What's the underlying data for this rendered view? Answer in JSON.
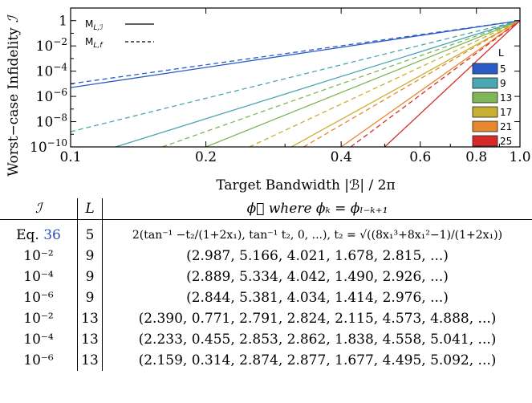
{
  "chart_data": {
    "type": "line",
    "xlabel": "Target Bandwidth |ℬ| / 2π",
    "ylabel": "Worst−case Infidelity",
    "ylabel_symbol": "ℐ",
    "x_scale": "log",
    "y_scale": "log",
    "xlim": [
      0.1,
      1.0
    ],
    "ylim": [
      1e-10,
      10
    ],
    "x_ticks": [
      {
        "value": 0.1,
        "label": "0.1"
      },
      {
        "value": 0.2,
        "label": "0.2"
      },
      {
        "value": 0.4,
        "label": "0.4"
      },
      {
        "value": 0.6,
        "label": "0.6"
      },
      {
        "value": 0.8,
        "label": "0.8"
      },
      {
        "value": 1.0,
        "label": "1.0"
      }
    ],
    "y_ticks": [
      {
        "value": 1,
        "base": "1",
        "exp": ""
      },
      {
        "value": 0.01,
        "base": "10",
        "exp": "−2"
      },
      {
        "value": 0.0001,
        "base": "10",
        "exp": "−4"
      },
      {
        "value": 1e-06,
        "base": "10",
        "exp": "−6"
      },
      {
        "value": 1e-08,
        "base": "10",
        "exp": "−8"
      },
      {
        "value": 1e-10,
        "base": "10",
        "exp": "−10"
      }
    ],
    "style_legend": [
      {
        "label": "M",
        "sub": "L,ℐ",
        "style": "solid"
      },
      {
        "label": "M",
        "sub": "L,f",
        "style": "dashed"
      }
    ],
    "L_legend_title": "L",
    "series": [
      {
        "name": "5",
        "color": "#2b5bc4",
        "solid": {
          "x": [
            0.1,
            1.0
          ],
          "y": [
            5e-06,
            1
          ]
        },
        "dashed": {
          "x": [
            0.1,
            1.0
          ],
          "y": [
            1e-05,
            1
          ]
        }
      },
      {
        "name": "9",
        "color": "#4aa6b3",
        "solid": {
          "x": [
            0.126,
            1.0
          ],
          "y": [
            1e-10,
            1
          ]
        },
        "dashed": {
          "x": [
            0.1,
            1.0
          ],
          "y": [
            1.6e-09,
            1
          ]
        }
      },
      {
        "name": "13",
        "color": "#7fb657",
        "solid": {
          "x": [
            0.2,
            1.0
          ],
          "y": [
            1e-10,
            1
          ]
        },
        "dashed": {
          "x": [
            0.16,
            1.0
          ],
          "y": [
            1e-10,
            1
          ]
        }
      },
      {
        "name": "17",
        "color": "#c8b032",
        "solid": {
          "x": [
            0.31,
            1.0
          ],
          "y": [
            1e-10,
            1
          ]
        },
        "dashed": {
          "x": [
            0.25,
            1.0
          ],
          "y": [
            1e-10,
            1
          ]
        }
      },
      {
        "name": "21",
        "color": "#e8882e",
        "solid": {
          "x": [
            0.4,
            1.0
          ],
          "y": [
            1e-10,
            1
          ]
        },
        "dashed": {
          "x": [
            0.33,
            1.0
          ],
          "y": [
            1e-10,
            1
          ]
        }
      },
      {
        "name": "25",
        "color": "#d62a2a",
        "solid": {
          "x": [
            0.5,
            1.0
          ],
          "y": [
            1e-10,
            1
          ]
        },
        "dashed": {
          "x": [
            0.42,
            1.0
          ],
          "y": [
            1e-10,
            1
          ]
        }
      }
    ],
    "grid": false,
    "legend_position": "top-left and right"
  },
  "table": {
    "headers": [
      "ℐ",
      "L",
      "ϕ⃗ where ϕₖ = ϕₗ₋ₖ₊₁"
    ],
    "rows": [
      {
        "infid": "Eq. ",
        "ref": "36",
        "L": "5",
        "phi": "2(tan⁻¹ −t₂/(1+2x₁), tan⁻¹ t₂, 0, ...), t₂ = √((8x₁³+8x₁²−1)/(1+2x₁))"
      },
      {
        "infid": "10⁻²",
        "ref": "",
        "L": "9",
        "phi": "(2.987, 5.166, 4.021, 1.678, 2.815, ...)"
      },
      {
        "infid": "10⁻⁴",
        "ref": "",
        "L": "9",
        "phi": "(2.889, 5.334, 4.042, 1.490, 2.926, ...)"
      },
      {
        "infid": "10⁻⁶",
        "ref": "",
        "L": "9",
        "phi": "(2.844, 5.381, 4.034, 1.414, 2.976, ...)"
      },
      {
        "infid": "10⁻²",
        "ref": "",
        "L": "13",
        "phi": "(2.390, 0.771, 2.791, 2.824, 2.115, 4.573, 4.888, ...)"
      },
      {
        "infid": "10⁻⁴",
        "ref": "",
        "L": "13",
        "phi": "(2.233, 0.455, 2.853, 2.862, 1.838, 4.558, 5.041, ...)"
      },
      {
        "infid": "10⁻⁶",
        "ref": "",
        "L": "13",
        "phi": "(2.159, 0.314, 2.874, 2.877, 1.677, 4.495, 5.092, ...)"
      }
    ]
  }
}
